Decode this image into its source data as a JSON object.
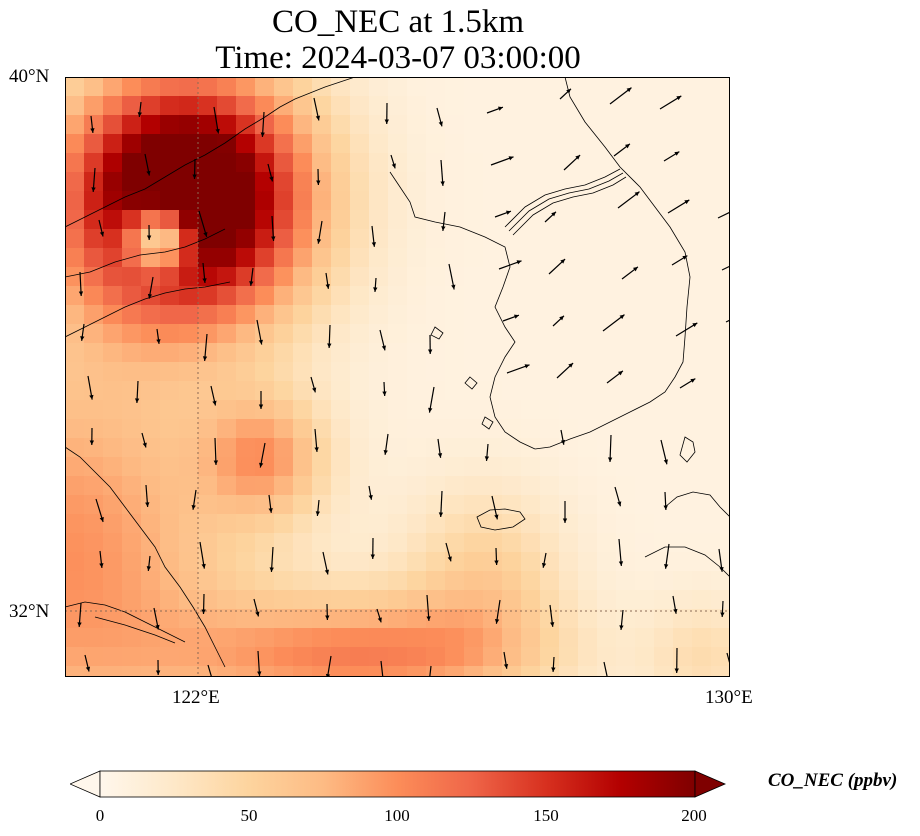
{
  "title": {
    "line1": "CO_NEC at 1.5km",
    "line2": "Time: 2024-03-07 03:00:00"
  },
  "map": {
    "variable": "CO_NEC",
    "level": "1.5km",
    "lat_range": [
      31,
      40
    ],
    "lon_range": [
      120,
      130
    ],
    "lat_ticks": [
      "40°N",
      "32°N"
    ],
    "lon_ticks": [
      "122°E",
      "130°E"
    ],
    "gridlines": "dotted at 122°E and 32°N",
    "colormap": "OrRd",
    "overlay": "wind vectors (black arrows)"
  },
  "colorbar": {
    "label": "CO_NEC (ppbv)",
    "min": 0,
    "max": 200,
    "ticks": [
      "0",
      "50",
      "100",
      "150",
      "200"
    ],
    "extend": "both",
    "colors": [
      "#fff7ec",
      "#fee8c8",
      "#fdd49e",
      "#fdbb84",
      "#fc8d59",
      "#ef6548",
      "#d7301f",
      "#b30000",
      "#7f0000"
    ]
  }
}
